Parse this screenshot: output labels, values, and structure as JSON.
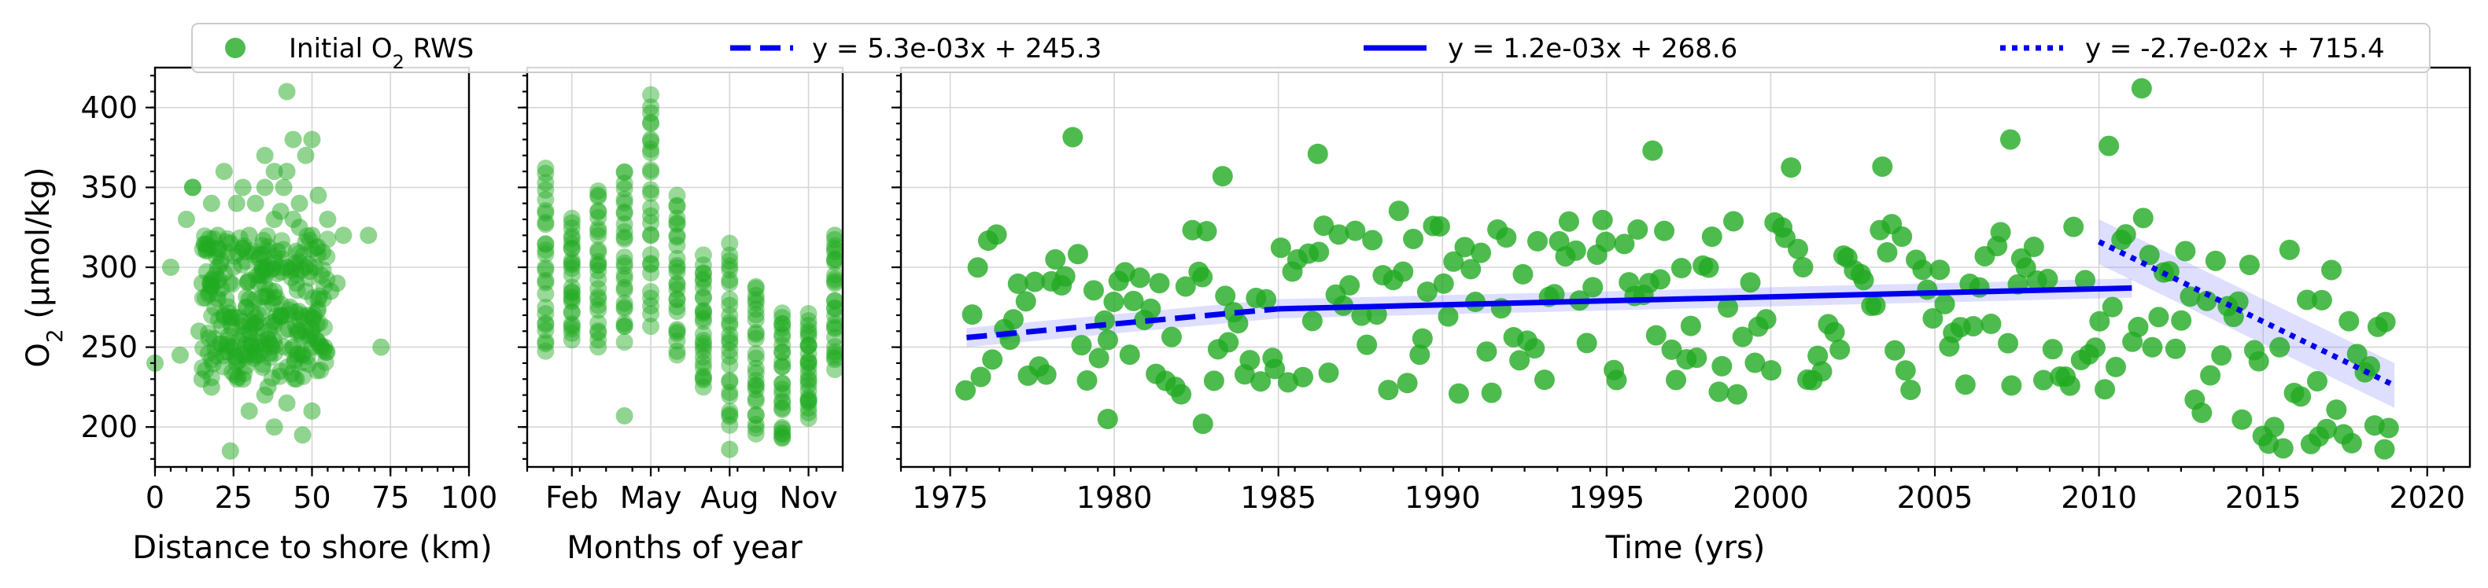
{
  "chart_data": [
    {
      "type": "scatter",
      "panel": "distance",
      "xlabel": "Distance to shore (km)",
      "ylabel": "O₂ (µmol/kg)",
      "xlim": [
        0,
        100
      ],
      "ylim": [
        175,
        425
      ],
      "xticks": [
        0,
        25,
        50,
        75,
        100
      ],
      "xtick_labels": [
        "0",
        "25",
        "50",
        "75",
        "100"
      ],
      "yticks": [
        200,
        250,
        300,
        350,
        400
      ],
      "ytick_labels": [
        "200",
        "250",
        "300",
        "350",
        "400"
      ],
      "grid": true,
      "color": "#22aa22",
      "series": [
        {
          "name": "Initial O₂ RWS",
          "x": [
            0,
            5,
            8,
            10,
            12,
            14,
            15,
            18,
            20,
            20,
            22,
            22,
            24,
            25,
            25,
            26,
            28,
            28,
            30,
            30,
            30,
            32,
            32,
            33,
            34,
            35,
            35,
            36,
            36,
            38,
            38,
            38,
            40,
            40,
            40,
            41,
            42,
            42,
            42,
            44,
            44,
            45,
            45,
            46,
            46,
            47,
            48,
            48,
            48,
            50,
            50,
            50,
            50,
            52,
            52,
            54,
            55,
            58,
            60,
            68,
            72,
            15,
            18,
            24,
            30,
            34,
            36,
            38,
            40,
            43,
            45,
            47,
            49,
            51,
            53,
            56,
            12,
            26,
            31,
            37,
            44,
            48,
            20,
            28,
            33,
            39,
            46,
            29,
            35,
            42,
            49
          ],
          "y": [
            240,
            300,
            245,
            330,
            350,
            260,
            230,
            225,
            320,
            280,
            360,
            270,
            185,
            250,
            300,
            340,
            230,
            350,
            210,
            280,
            320,
            265,
            340,
            245,
            300,
            220,
            370,
            255,
            310,
            200,
            285,
            330,
            235,
            270,
            300,
            350,
            215,
            360,
            410,
            250,
            380,
            230,
            290,
            325,
            340,
            195,
            260,
            300,
            370,
            210,
            260,
            320,
            380,
            280,
            345,
            250,
            330,
            290,
            320,
            320,
            250,
            290,
            340,
            315,
            260,
            295,
            225,
            360,
            335,
            275,
            310,
            245,
            270,
            300,
            250,
            285,
            350,
            240,
            310,
            265,
            330,
            285,
            300,
            245,
            290,
            310,
            260,
            275,
            350,
            300,
            255
          ]
        }
      ]
    },
    {
      "type": "scatter",
      "panel": "months",
      "xlabel": "Months of year",
      "xlim": [
        0.3,
        12.3
      ],
      "ylim": [
        175,
        425
      ],
      "xticks": [
        2,
        5,
        8,
        11
      ],
      "xtick_labels": [
        "Feb",
        "May",
        "Aug",
        "Nov"
      ],
      "grid": true,
      "color": "#22aa22",
      "month_ranges": [
        [
          1,
          245,
          360
        ],
        [
          2,
          255,
          330
        ],
        [
          3,
          250,
          350
        ],
        [
          4,
          255,
          360
        ],
        [
          5,
          265,
          410
        ],
        [
          6,
          245,
          345
        ],
        [
          7,
          225,
          305
        ],
        [
          8,
          200,
          315
        ],
        [
          9,
          195,
          290
        ],
        [
          10,
          190,
          275
        ],
        [
          11,
          205,
          270
        ],
        [
          12,
          235,
          320
        ]
      ],
      "outliers": [
        [
          4,
          207
        ],
        [
          8,
          186
        ],
        [
          10,
          193
        ],
        [
          5,
          380
        ],
        [
          12,
          320
        ]
      ]
    },
    {
      "type": "scatter",
      "panel": "time",
      "xlabel": "Time (yrs)",
      "xlim": [
        1973.5,
        2021.3
      ],
      "ylim": [
        175,
        425
      ],
      "xticks": [
        1975,
        1980,
        1985,
        1990,
        1995,
        2000,
        2005,
        2010,
        2015,
        2020
      ],
      "xtick_labels": [
        "1975",
        "1980",
        "1985",
        "1990",
        "1995",
        "2000",
        "2005",
        "2010",
        "2015",
        "2020"
      ],
      "grid": true,
      "color": "#22aa22",
      "trend_lines": [
        {
          "label": "y = 5.3e-03x + 245.3",
          "style": "dashed",
          "x": [
            1975.5,
            1985.0
          ],
          "y": [
            256,
            274
          ]
        },
        {
          "label": "y = 1.2e-03x + 268.6",
          "style": "solid",
          "x": [
            1985.0,
            2011.0
          ],
          "y": [
            274,
            287
          ]
        },
        {
          "label": "y = -2.7e-02x + 715.4",
          "style": "dotted",
          "x": [
            2010.0,
            2019.0
          ],
          "y": [
            316,
            226
          ]
        }
      ],
      "trend_color": "#0000ee",
      "legend_position": "top"
    }
  ],
  "legend": {
    "scatter_label_main": "Initial O",
    "scatter_label_sub": "2",
    "scatter_label_tail": " RWS",
    "trend1": "y = 5.3e-03x + 245.3",
    "trend2": "y = 1.2e-03x + 268.6",
    "trend3": "y = -2.7e-02x + 715.4"
  },
  "labels": {
    "ylabel_main": "O",
    "ylabel_sub": "2",
    "ylabel_tail": " (µmol/kg)",
    "xlabel_distance": "Distance to shore (km)",
    "xlabel_months": "Months of year",
    "xlabel_time": "Time (yrs)"
  }
}
